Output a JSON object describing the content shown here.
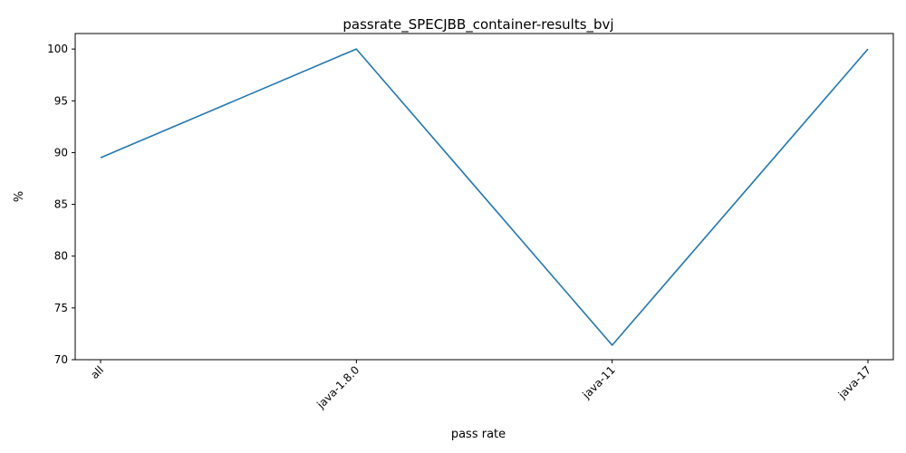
{
  "chart_data": {
    "type": "line",
    "title": "passrate_SPECJBB_container-results_bvj",
    "xlabel": "pass rate",
    "ylabel": "%",
    "categories": [
      "all",
      "java-1.8.0",
      "java-11",
      "java-17"
    ],
    "series": [
      {
        "values": [
          89.5,
          100,
          71.4,
          100
        ],
        "color": "#1f77b4"
      }
    ],
    "yticks": [
      70,
      75,
      80,
      85,
      90,
      95,
      100
    ],
    "ylim": [
      70,
      101.5
    ],
    "grid": false,
    "legend": "none"
  }
}
